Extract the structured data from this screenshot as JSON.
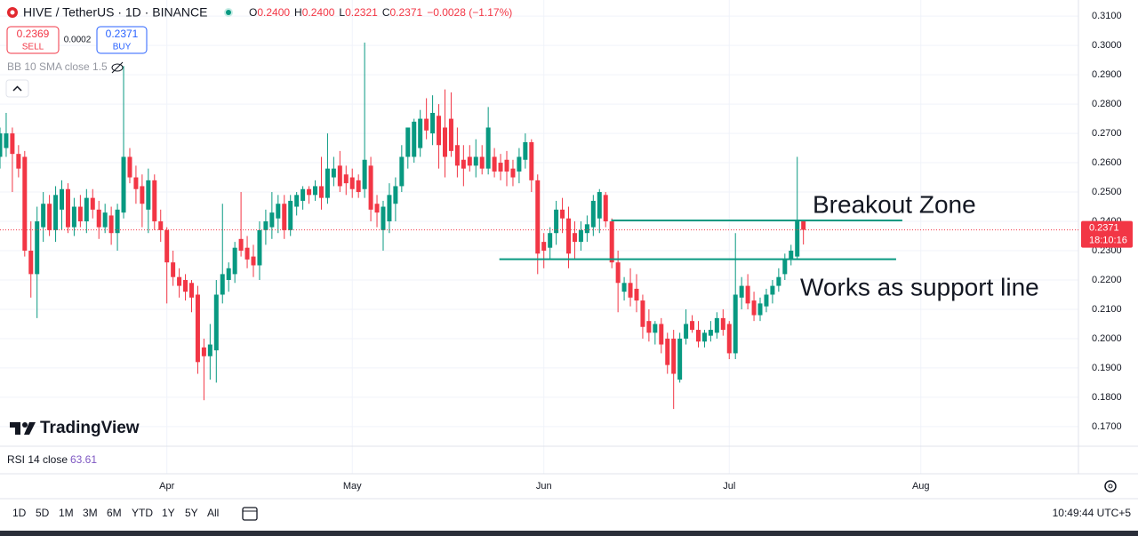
{
  "ui": {
    "symbol": "HIVE / TetherUS · 1D · BINANCE",
    "ohlc": [
      {
        "label": "O",
        "value": "0.2400"
      },
      {
        "label": "H",
        "value": "0.2400"
      },
      {
        "label": "L",
        "value": "0.2321"
      },
      {
        "label": "C",
        "value": "0.2371"
      }
    ],
    "change": "−0.0028 (−1.17%)",
    "sell": {
      "price": "0.2369",
      "label": "SELL"
    },
    "spread": "0.0002",
    "buy": {
      "price": "0.2371",
      "label": "BUY"
    },
    "indicator": "BB 10 SMA close 1.5",
    "logo": "TradingView",
    "rsi": {
      "label": "RSI 14 close",
      "value": "63.61"
    },
    "timer": "18:10:16",
    "ranges": [
      "1D",
      "5D",
      "1M",
      "3M",
      "6M",
      "YTD",
      "1Y",
      "5Y",
      "All"
    ],
    "clock": "10:49:44 UTC+5"
  },
  "chart_data": {
    "type": "candlestick",
    "up_color": "#089981",
    "down_color": "#f23645",
    "grid": true,
    "xlim": [
      0,
      174.5
    ],
    "ylim": [
      0.1633,
      0.3155
    ],
    "xticks": [
      {
        "value": 27,
        "label": "Apr"
      },
      {
        "value": 57,
        "label": "May"
      },
      {
        "value": 88,
        "label": "Jun"
      },
      {
        "value": 118,
        "label": "Jul"
      },
      {
        "value": 149,
        "label": "Aug"
      }
    ],
    "yticks": [
      {
        "value": 0.17,
        "label": "0.1700"
      },
      {
        "value": 0.18,
        "label": "0.1800"
      },
      {
        "value": 0.19,
        "label": "0.1900"
      },
      {
        "value": 0.2,
        "label": "0.2000"
      },
      {
        "value": 0.21,
        "label": "0.2100"
      },
      {
        "value": 0.22,
        "label": "0.2200"
      },
      {
        "value": 0.23,
        "label": "0.2300"
      },
      {
        "value": 0.24,
        "label": "0.2400"
      },
      {
        "value": 0.25,
        "label": "0.2500"
      },
      {
        "value": 0.26,
        "label": "0.2600"
      },
      {
        "value": 0.27,
        "label": "0.2700"
      },
      {
        "value": 0.28,
        "label": "0.2800"
      },
      {
        "value": 0.29,
        "label": "0.2900"
      },
      {
        "value": 0.3,
        "label": "0.3000"
      },
      {
        "value": 0.31,
        "label": "0.3100"
      }
    ],
    "x": [
      0,
      1,
      2,
      3,
      4,
      5,
      6,
      7,
      8,
      9,
      10,
      11,
      12,
      13,
      14,
      15,
      16,
      17,
      18,
      19,
      20,
      21,
      22,
      23,
      24,
      25,
      26,
      27,
      28,
      29,
      30,
      31,
      32,
      33,
      34,
      35,
      36,
      37,
      38,
      39,
      40,
      41,
      42,
      43,
      44,
      45,
      46,
      47,
      48,
      49,
      50,
      51,
      52,
      53,
      54,
      55,
      56,
      57,
      58,
      59,
      60,
      61,
      62,
      63,
      64,
      65,
      66,
      67,
      68,
      69,
      70,
      71,
      72,
      73,
      74,
      75,
      76,
      77,
      78,
      79,
      80,
      81,
      82,
      83,
      84,
      85,
      86,
      87,
      88,
      89,
      90,
      91,
      92,
      93,
      94,
      95,
      96,
      97,
      98,
      99,
      100,
      101,
      102,
      103,
      104,
      105,
      106,
      107,
      108,
      109,
      110,
      111,
      112,
      113,
      114,
      115,
      116,
      117,
      118,
      119,
      120,
      121,
      122,
      123,
      124,
      125,
      126,
      127,
      128,
      129,
      130
    ],
    "candles": [
      [
        0.262,
        0.272,
        0.258,
        0.27
      ],
      [
        0.265,
        0.277,
        0.262,
        0.27
      ],
      [
        0.27,
        0.272,
        0.25,
        0.263
      ],
      [
        0.263,
        0.266,
        0.255,
        0.258
      ],
      [
        0.262,
        0.264,
        0.228,
        0.23
      ],
      [
        0.23,
        0.24,
        0.214,
        0.222
      ],
      [
        0.222,
        0.245,
        0.207,
        0.24
      ],
      [
        0.238,
        0.25,
        0.233,
        0.246
      ],
      [
        0.246,
        0.249,
        0.235,
        0.237
      ],
      [
        0.237,
        0.252,
        0.233,
        0.249
      ],
      [
        0.244,
        0.254,
        0.237,
        0.251
      ],
      [
        0.251,
        0.253,
        0.236,
        0.238
      ],
      [
        0.238,
        0.248,
        0.235,
        0.245
      ],
      [
        0.245,
        0.249,
        0.238,
        0.24
      ],
      [
        0.24,
        0.251,
        0.236,
        0.248
      ],
      [
        0.248,
        0.251,
        0.241,
        0.244
      ],
      [
        0.244,
        0.247,
        0.234,
        0.238
      ],
      [
        0.238,
        0.246,
        0.236,
        0.243
      ],
      [
        0.242,
        0.245,
        0.232,
        0.236
      ],
      [
        0.236,
        0.246,
        0.23,
        0.244
      ],
      [
        0.243,
        0.293,
        0.241,
        0.262
      ],
      [
        0.262,
        0.265,
        0.253,
        0.255
      ],
      [
        0.255,
        0.259,
        0.246,
        0.251
      ],
      [
        0.252,
        0.256,
        0.238,
        0.246
      ],
      [
        0.244,
        0.258,
        0.236,
        0.254
      ],
      [
        0.254,
        0.256,
        0.237,
        0.24
      ],
      [
        0.24,
        0.244,
        0.233,
        0.237
      ],
      [
        0.237,
        0.238,
        0.212,
        0.226
      ],
      [
        0.226,
        0.23,
        0.218,
        0.221
      ],
      [
        0.221,
        0.224,
        0.214,
        0.218
      ],
      [
        0.22,
        0.222,
        0.213,
        0.216
      ],
      [
        0.219,
        0.22,
        0.209,
        0.214
      ],
      [
        0.215,
        0.218,
        0.188,
        0.192
      ],
      [
        0.197,
        0.2,
        0.179,
        0.194
      ],
      [
        0.194,
        0.205,
        0.186,
        0.198
      ],
      [
        0.196,
        0.22,
        0.185,
        0.215
      ],
      [
        0.215,
        0.246,
        0.212,
        0.222
      ],
      [
        0.22,
        0.226,
        0.216,
        0.224
      ],
      [
        0.222,
        0.233,
        0.219,
        0.231
      ],
      [
        0.234,
        0.25,
        0.228,
        0.23
      ],
      [
        0.231,
        0.235,
        0.224,
        0.227
      ],
      [
        0.228,
        0.232,
        0.221,
        0.225
      ],
      [
        0.225,
        0.24,
        0.22,
        0.237
      ],
      [
        0.237,
        0.244,
        0.232,
        0.24
      ],
      [
        0.238,
        0.25,
        0.234,
        0.243
      ],
      [
        0.241,
        0.249,
        0.236,
        0.246
      ],
      [
        0.246,
        0.249,
        0.234,
        0.237
      ],
      [
        0.237,
        0.249,
        0.235,
        0.247
      ],
      [
        0.245,
        0.25,
        0.242,
        0.249
      ],
      [
        0.247,
        0.252,
        0.244,
        0.251
      ],
      [
        0.251,
        0.252,
        0.246,
        0.249
      ],
      [
        0.249,
        0.254,
        0.247,
        0.252
      ],
      [
        0.252,
        0.262,
        0.244,
        0.248
      ],
      [
        0.248,
        0.27,
        0.246,
        0.258
      ],
      [
        0.255,
        0.262,
        0.252,
        0.258
      ],
      [
        0.259,
        0.264,
        0.25,
        0.252
      ],
      [
        0.256,
        0.259,
        0.249,
        0.253
      ],
      [
        0.255,
        0.258,
        0.248,
        0.251
      ],
      [
        0.254,
        0.256,
        0.248,
        0.25
      ],
      [
        0.251,
        0.301,
        0.248,
        0.261
      ],
      [
        0.259,
        0.262,
        0.24,
        0.244
      ],
      [
        0.246,
        0.249,
        0.238,
        0.243
      ],
      [
        0.237,
        0.247,
        0.23,
        0.245
      ],
      [
        0.24,
        0.253,
        0.236,
        0.249
      ],
      [
        0.246,
        0.255,
        0.24,
        0.252
      ],
      [
        0.252,
        0.266,
        0.25,
        0.262
      ],
      [
        0.262,
        0.272,
        0.258,
        0.272
      ],
      [
        0.262,
        0.275,
        0.26,
        0.274
      ],
      [
        0.265,
        0.278,
        0.262,
        0.275
      ],
      [
        0.275,
        0.282,
        0.268,
        0.271
      ],
      [
        0.27,
        0.283,
        0.266,
        0.277
      ],
      [
        0.276,
        0.28,
        0.258,
        0.266
      ],
      [
        0.272,
        0.285,
        0.255,
        0.262
      ],
      [
        0.275,
        0.284,
        0.262,
        0.264
      ],
      [
        0.266,
        0.272,
        0.255,
        0.259
      ],
      [
        0.261,
        0.266,
        0.252,
        0.258
      ],
      [
        0.262,
        0.266,
        0.257,
        0.259
      ],
      [
        0.259,
        0.268,
        0.255,
        0.262
      ],
      [
        0.262,
        0.266,
        0.256,
        0.258
      ],
      [
        0.258,
        0.279,
        0.256,
        0.272
      ],
      [
        0.262,
        0.265,
        0.255,
        0.257
      ],
      [
        0.26,
        0.263,
        0.254,
        0.257
      ],
      [
        0.261,
        0.264,
        0.252,
        0.257
      ],
      [
        0.258,
        0.261,
        0.252,
        0.255
      ],
      [
        0.257,
        0.265,
        0.253,
        0.262
      ],
      [
        0.261,
        0.27,
        0.258,
        0.267
      ],
      [
        0.267,
        0.268,
        0.25,
        0.254
      ],
      [
        0.254,
        0.256,
        0.222,
        0.229
      ],
      [
        0.233,
        0.236,
        0.224,
        0.23
      ],
      [
        0.231,
        0.238,
        0.227,
        0.236
      ],
      [
        0.236,
        0.247,
        0.232,
        0.244
      ],
      [
        0.244,
        0.248,
        0.236,
        0.241
      ],
      [
        0.241,
        0.245,
        0.224,
        0.229
      ],
      [
        0.236,
        0.24,
        0.227,
        0.233
      ],
      [
        0.233,
        0.24,
        0.23,
        0.237
      ],
      [
        0.236,
        0.242,
        0.233,
        0.239
      ],
      [
        0.238,
        0.249,
        0.235,
        0.247
      ],
      [
        0.241,
        0.251,
        0.236,
        0.25
      ],
      [
        0.249,
        0.25,
        0.238,
        0.24
      ],
      [
        0.24,
        0.241,
        0.224,
        0.226
      ],
      [
        0.226,
        0.23,
        0.209,
        0.219
      ],
      [
        0.216,
        0.221,
        0.213,
        0.219
      ],
      [
        0.219,
        0.224,
        0.211,
        0.214
      ],
      [
        0.217,
        0.222,
        0.209,
        0.213
      ],
      [
        0.213,
        0.215,
        0.2,
        0.204
      ],
      [
        0.206,
        0.21,
        0.199,
        0.202
      ],
      [
        0.202,
        0.206,
        0.198,
        0.205
      ],
      [
        0.205,
        0.207,
        0.195,
        0.198
      ],
      [
        0.2,
        0.202,
        0.188,
        0.191
      ],
      [
        0.2,
        0.203,
        0.176,
        0.188
      ],
      [
        0.186,
        0.202,
        0.185,
        0.2
      ],
      [
        0.2,
        0.21,
        0.198,
        0.205
      ],
      [
        0.206,
        0.208,
        0.202,
        0.203
      ],
      [
        0.203,
        0.206,
        0.197,
        0.199
      ],
      [
        0.199,
        0.203,
        0.197,
        0.202
      ],
      [
        0.201,
        0.206,
        0.199,
        0.203
      ],
      [
        0.202,
        0.209,
        0.2,
        0.207
      ],
      [
        0.207,
        0.21,
        0.201,
        0.203
      ],
      [
        0.205,
        0.206,
        0.193,
        0.195
      ],
      [
        0.195,
        0.236,
        0.193,
        0.215
      ],
      [
        0.214,
        0.221,
        0.21,
        0.218
      ],
      [
        0.218,
        0.222,
        0.21,
        0.212
      ],
      [
        0.213,
        0.216,
        0.206,
        0.208
      ],
      [
        0.208,
        0.214,
        0.206,
        0.212
      ],
      [
        0.211,
        0.217,
        0.209,
        0.215
      ],
      [
        0.215,
        0.22,
        0.212,
        0.218
      ],
      [
        0.218,
        0.224,
        0.216,
        0.221
      ],
      [
        0.222,
        0.229,
        0.22,
        0.227
      ],
      [
        0.227,
        0.232,
        0.225,
        0.23
      ],
      [
        0.228,
        0.262,
        0.227,
        0.24
      ],
      [
        0.24,
        0.24,
        0.2321,
        0.2371
      ]
    ],
    "drawings": [
      {
        "label": "Breakout Zone",
        "price": 0.2403,
        "x": [
          98.9,
          146
        ]
      },
      {
        "label": "Works as support line",
        "price": 0.2271,
        "x": [
          80.8,
          145
        ]
      }
    ]
  }
}
